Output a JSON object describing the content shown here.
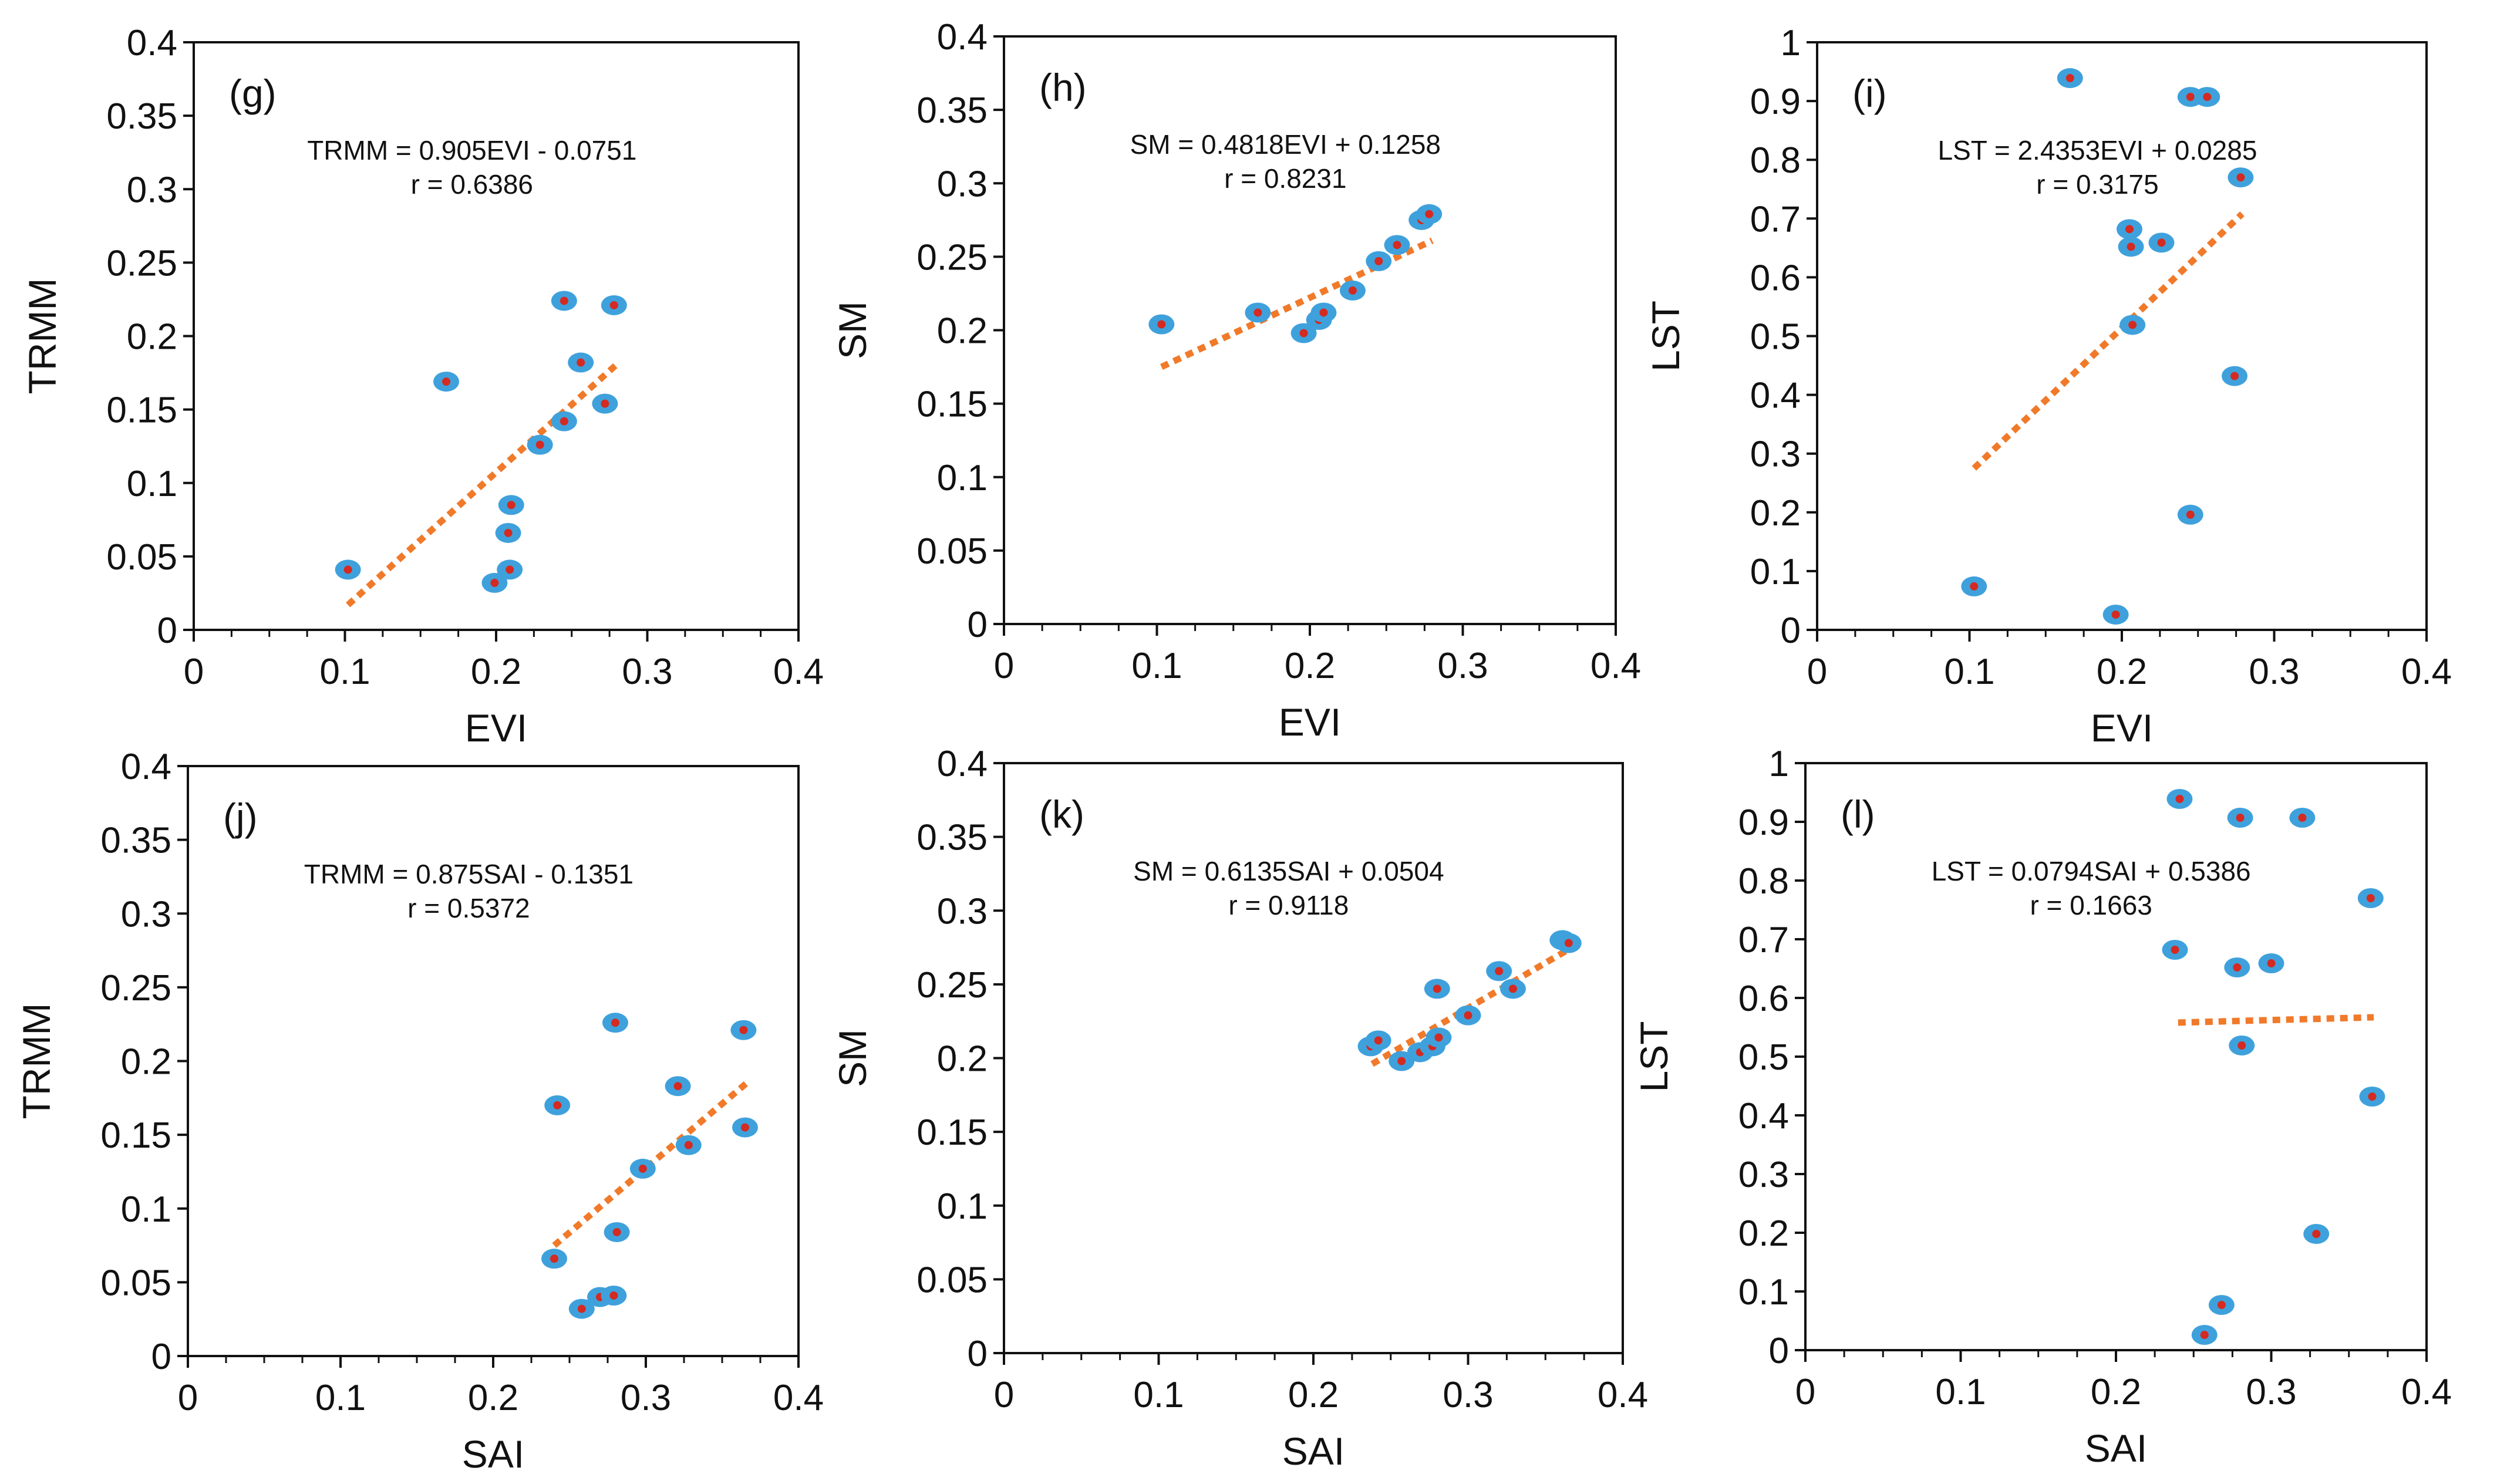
{
  "chart_data": [
    {
      "type": "scatter",
      "panel": "(g)",
      "xlabel": "EVI",
      "ylabel": "TRMM",
      "xlim": [
        0,
        0.4
      ],
      "ylim": [
        0,
        0.4
      ],
      "xticks": [
        "0",
        "0.1",
        "0.2",
        "0.3",
        "0.4"
      ],
      "yticks": [
        "0",
        "0.05",
        "0.1",
        "0.15",
        "0.2",
        "0.25",
        "0.3",
        "0.35",
        "0.4"
      ],
      "equation": "TRMM  = 0.905EVI - 0.0751",
      "r_text": "r = 0.6386",
      "trendline": {
        "x": [
          0.102,
          0.279
        ],
        "y": [
          0.017,
          0.18
        ]
      },
      "points": [
        [
          0.102,
          0.041
        ],
        [
          0.167,
          0.169
        ],
        [
          0.199,
          0.032
        ],
        [
          0.209,
          0.041
        ],
        [
          0.208,
          0.066
        ],
        [
          0.21,
          0.085
        ],
        [
          0.229,
          0.126
        ],
        [
          0.245,
          0.142
        ],
        [
          0.245,
          0.224
        ],
        [
          0.256,
          0.182
        ],
        [
          0.272,
          0.154
        ],
        [
          0.278,
          0.221
        ]
      ]
    },
    {
      "type": "scatter",
      "panel": "(h)",
      "xlabel": "EVI",
      "ylabel": "SM",
      "xlim": [
        0,
        0.4
      ],
      "ylim": [
        0,
        0.4
      ],
      "xticks": [
        "0",
        "0.1",
        "0.2",
        "0.3",
        "0.4"
      ],
      "yticks": [
        "0",
        "0.05",
        "0.1",
        "0.15",
        "0.2",
        "0.25",
        "0.3",
        "0.35",
        "0.4"
      ],
      "equation": "SM = 0.4818EVI + 0.1258",
      "r_text": "r = 0.8231",
      "trendline": {
        "x": [
          0.103,
          0.28
        ],
        "y": [
          0.175,
          0.261
        ]
      },
      "points": [
        [
          0.103,
          0.204
        ],
        [
          0.166,
          0.212
        ],
        [
          0.196,
          0.198
        ],
        [
          0.206,
          0.207
        ],
        [
          0.209,
          0.212
        ],
        [
          0.228,
          0.227
        ],
        [
          0.245,
          0.247
        ],
        [
          0.257,
          0.258
        ],
        [
          0.273,
          0.275
        ],
        [
          0.278,
          0.279
        ]
      ]
    },
    {
      "type": "scatter",
      "panel": "(i)",
      "xlabel": "EVI",
      "ylabel": "LST",
      "xlim": [
        0,
        0.4
      ],
      "ylim": [
        0,
        1
      ],
      "xticks": [
        "0",
        "0.1",
        "0.2",
        "0.3",
        "0.4"
      ],
      "yticks": [
        "0",
        "0.1",
        "0.2",
        "0.3",
        "0.4",
        "0.5",
        "0.6",
        "0.7",
        "0.8",
        "0.9",
        "1"
      ],
      "equation": "LST = 2.4353EVI + 0.0285",
      "r_text": "r = 0.3175",
      "trendline": {
        "x": [
          0.103,
          0.279
        ],
        "y": [
          0.275,
          0.708
        ]
      },
      "points": [
        [
          0.103,
          0.074
        ],
        [
          0.166,
          0.939
        ],
        [
          0.196,
          0.026
        ],
        [
          0.205,
          0.682
        ],
        [
          0.206,
          0.652
        ],
        [
          0.207,
          0.519
        ],
        [
          0.226,
          0.659
        ],
        [
          0.245,
          0.196
        ],
        [
          0.245,
          0.907
        ],
        [
          0.256,
          0.907
        ],
        [
          0.274,
          0.432
        ],
        [
          0.278,
          0.77
        ]
      ]
    },
    {
      "type": "scatter",
      "panel": "(j)",
      "xlabel": "SAI",
      "ylabel": "TRMM",
      "xlim": [
        0,
        0.4
      ],
      "ylim": [
        0,
        0.4
      ],
      "xticks": [
        "0",
        "0.1",
        "0.2",
        "0.3",
        "0.4"
      ],
      "yticks": [
        "0",
        "0.05",
        "0.1",
        "0.15",
        "0.2",
        "0.25",
        "0.3",
        "0.35",
        "0.4"
      ],
      "equation": "TRMM  = 0.875SAI - 0.1351",
      "r_text": "r = 0.5372",
      "trendline": {
        "x": [
          0.24,
          0.366
        ],
        "y": [
          0.075,
          0.185
        ]
      },
      "points": [
        [
          0.24,
          0.066
        ],
        [
          0.242,
          0.17
        ],
        [
          0.258,
          0.032
        ],
        [
          0.27,
          0.04
        ],
        [
          0.279,
          0.041
        ],
        [
          0.28,
          0.226
        ],
        [
          0.281,
          0.084
        ],
        [
          0.298,
          0.127
        ],
        [
          0.321,
          0.183
        ],
        [
          0.328,
          0.143
        ],
        [
          0.364,
          0.221
        ],
        [
          0.365,
          0.155
        ]
      ]
    },
    {
      "type": "scatter",
      "panel": "(k)",
      "xlabel": "SAI",
      "ylabel": "SM",
      "xlim": [
        0,
        0.4
      ],
      "ylim": [
        0,
        0.4
      ],
      "xticks": [
        "0",
        "0.1",
        "0.2",
        "0.3",
        "0.4"
      ],
      "yticks": [
        "0",
        "0.05",
        "0.1",
        "0.15",
        "0.2",
        "0.25",
        "0.3",
        "0.35",
        "0.4"
      ],
      "equation": "SM = 0.6135SAI + 0.0504",
      "r_text": "r  = 0.9118",
      "trendline": {
        "x": [
          0.238,
          0.372
        ],
        "y": [
          0.196,
          0.278
        ]
      },
      "points": [
        [
          0.237,
          0.208
        ],
        [
          0.242,
          0.212
        ],
        [
          0.257,
          0.198
        ],
        [
          0.269,
          0.204
        ],
        [
          0.277,
          0.208
        ],
        [
          0.28,
          0.247
        ],
        [
          0.281,
          0.214
        ],
        [
          0.3,
          0.229
        ],
        [
          0.32,
          0.259
        ],
        [
          0.329,
          0.247
        ],
        [
          0.361,
          0.28
        ],
        [
          0.365,
          0.278
        ]
      ]
    },
    {
      "type": "scatter",
      "panel": "(l)",
      "xlabel": "SAI",
      "ylabel": "LST",
      "xlim": [
        0,
        0.4
      ],
      "ylim": [
        0,
        1
      ],
      "xticks": [
        "0",
        "0.1",
        "0.2",
        "0.3",
        "0.4"
      ],
      "yticks": [
        "0",
        "0.1",
        "0.2",
        "0.3",
        "0.4",
        "0.5",
        "0.6",
        "0.7",
        "0.8",
        "0.9",
        "1"
      ],
      "equation": "LST = 0.0794SAI + 0.5386",
      "r_text": "r = 0.1663",
      "trendline": {
        "x": [
          0.24,
          0.366
        ],
        "y": [
          0.558,
          0.567
        ]
      },
      "points": [
        [
          0.238,
          0.682
        ],
        [
          0.241,
          0.939
        ],
        [
          0.257,
          0.026
        ],
        [
          0.268,
          0.077
        ],
        [
          0.278,
          0.652
        ],
        [
          0.28,
          0.907
        ],
        [
          0.281,
          0.519
        ],
        [
          0.3,
          0.659
        ],
        [
          0.32,
          0.907
        ],
        [
          0.329,
          0.198
        ],
        [
          0.364,
          0.77
        ],
        [
          0.365,
          0.432
        ]
      ]
    }
  ],
  "colors": {
    "marker_outer": "#3fa1dc",
    "marker_inner": "#d42a22",
    "trendline": "#f07a2a",
    "axis": "#111111"
  }
}
